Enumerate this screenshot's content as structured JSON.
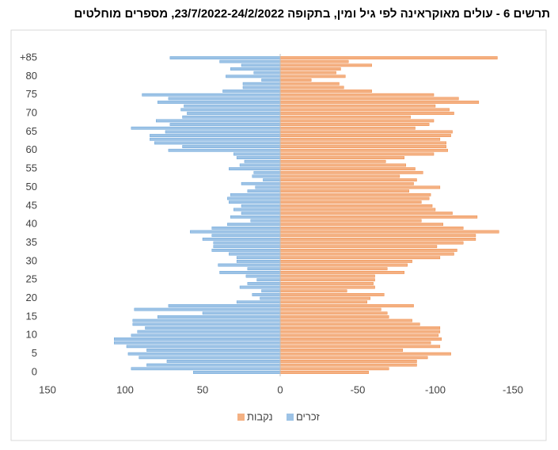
{
  "chart_data": {
    "type": "barh",
    "title": "תרשים 6 - עולים מאוקראינה לפי גיל ומין, בתקופה 23/7/2022-24/2/2022, מספרים מוחלטים",
    "categories": [
      "0",
      null,
      null,
      null,
      null,
      "5",
      null,
      null,
      null,
      null,
      "10",
      null,
      null,
      null,
      null,
      "15",
      null,
      null,
      null,
      null,
      "20",
      null,
      null,
      null,
      null,
      "25",
      null,
      null,
      null,
      null,
      "30",
      null,
      null,
      null,
      null,
      "35",
      null,
      null,
      null,
      null,
      "40",
      null,
      null,
      null,
      null,
      "45",
      null,
      null,
      null,
      null,
      "50",
      null,
      null,
      null,
      null,
      "55",
      null,
      null,
      null,
      null,
      "60",
      null,
      null,
      null,
      null,
      "65",
      null,
      null,
      null,
      null,
      "70",
      null,
      null,
      null,
      null,
      "75",
      null,
      null,
      null,
      null,
      "80",
      null,
      null,
      null,
      null,
      "+85"
    ],
    "series": [
      {
        "name": "זכרים",
        "color": "#9dc3e6",
        "values": [
          56,
          96,
          86,
          73,
          91,
          98,
          86,
          99,
          107,
          107,
          96,
          92,
          87,
          95,
          95,
          79,
          50,
          94,
          72,
          28,
          13,
          18,
          12,
          26,
          21,
          15,
          22,
          39,
          21,
          40,
          28,
          28,
          33,
          44,
          43,
          43,
          50,
          44,
          58,
          44,
          34,
          19,
          32,
          25,
          30,
          25,
          33,
          34,
          32,
          21,
          16,
          25,
          11,
          18,
          17,
          33,
          26,
          23,
          28,
          30,
          72,
          63,
          81,
          84,
          84,
          74,
          96,
          71,
          80,
          63,
          60,
          64,
          62,
          79,
          72,
          89,
          37,
          24,
          24,
          12,
          35,
          17,
          32,
          25,
          39,
          71
        ]
      },
      {
        "name": "נקבות",
        "color": "#f4b183",
        "values": [
          -57,
          -70,
          -88,
          -88,
          -95,
          -110,
          -79,
          -103,
          -97,
          -104,
          -102,
          -103,
          -103,
          -90,
          -85,
          -70,
          -69,
          -65,
          -86,
          -56,
          -58,
          -67,
          -43,
          -61,
          -60,
          -61,
          -61,
          -80,
          -69,
          -82,
          -85,
          -103,
          -112,
          -114,
          -101,
          -118,
          -126,
          -126,
          -141,
          -118,
          -105,
          -91,
          -127,
          -111,
          -100,
          -98,
          -91,
          -96,
          -97,
          -83,
          -103,
          -86,
          -88,
          -77,
          -92,
          -87,
          -81,
          -68,
          -80,
          -99,
          -108,
          -107,
          -107,
          -103,
          -110,
          -111,
          -87,
          -96,
          -99,
          -84,
          -112,
          -109,
          -100,
          -128,
          -115,
          -99,
          -59,
          -41,
          -38,
          -20,
          -42,
          -36,
          -39,
          -59,
          -44,
          -140
        ]
      }
    ],
    "xlim": [
      150,
      -150
    ],
    "xticks": [
      150,
      100,
      50,
      0,
      -50,
      -100,
      -150
    ]
  }
}
